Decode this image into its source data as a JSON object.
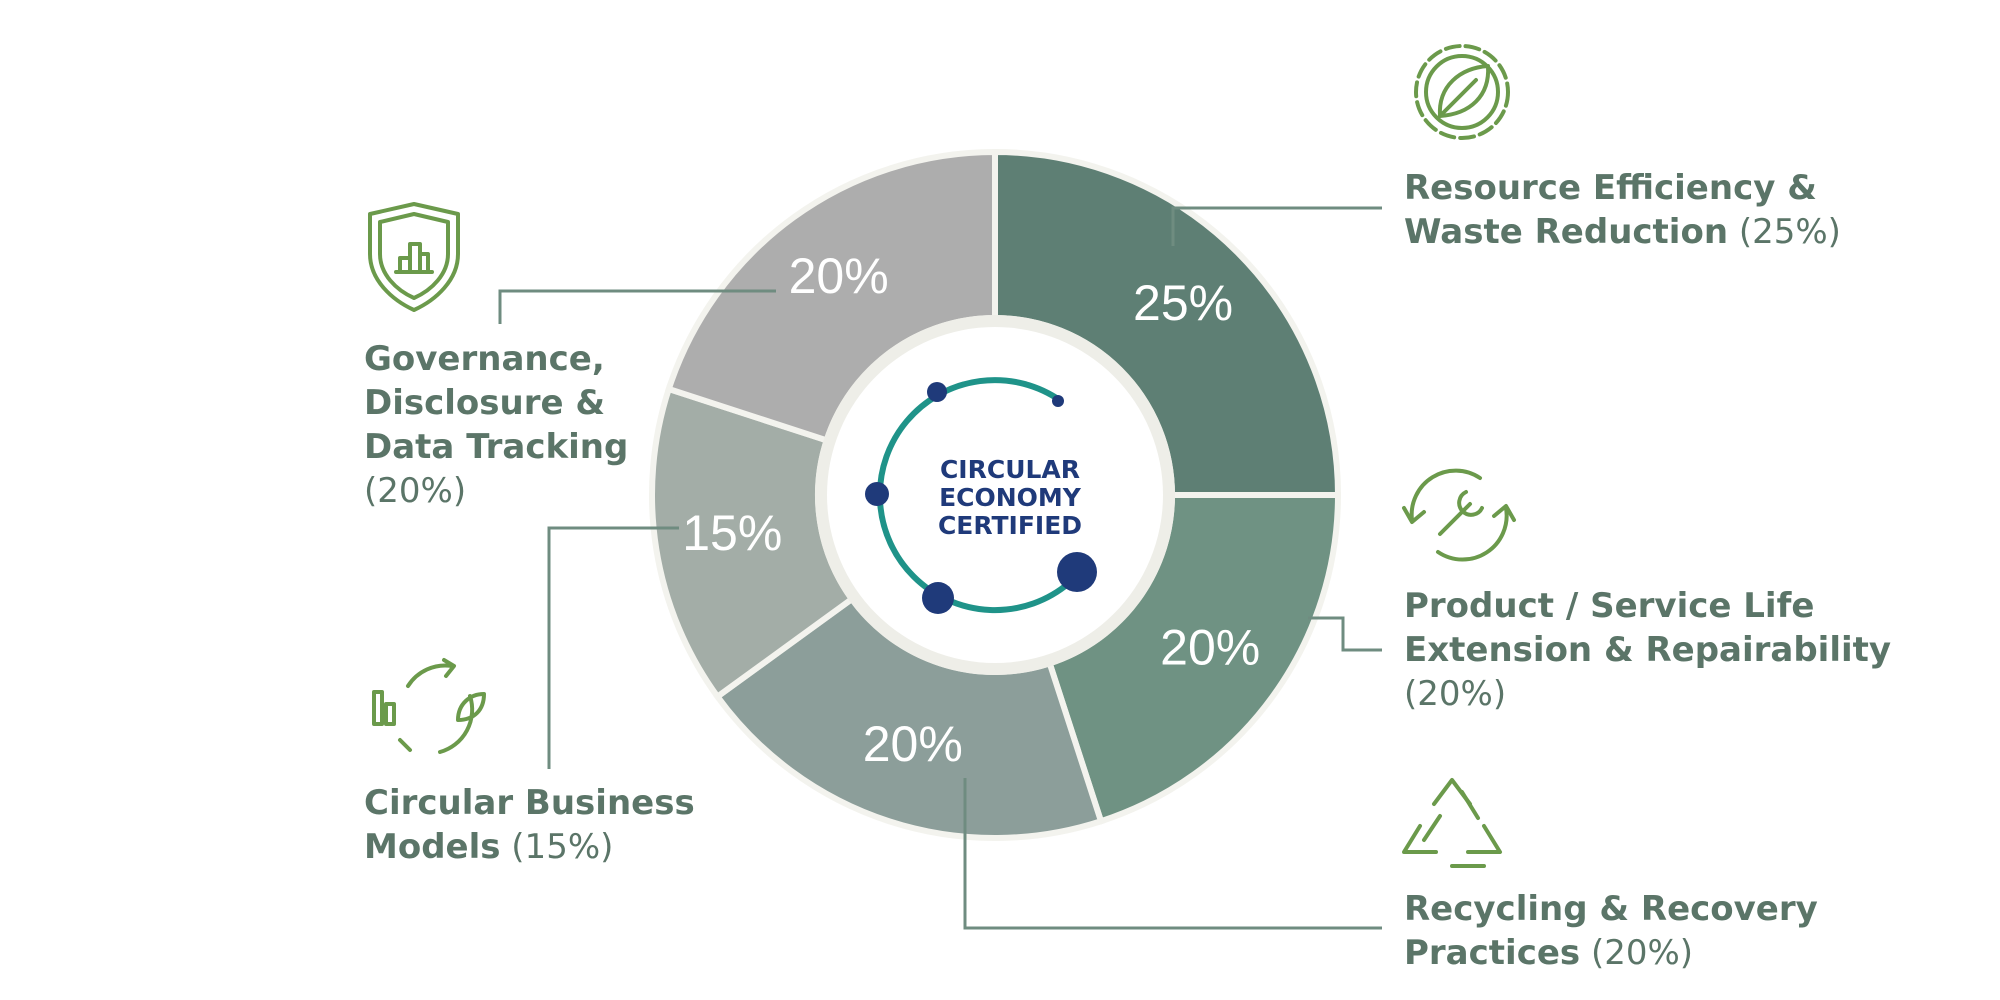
{
  "chart_data": {
    "type": "pie",
    "donut": true,
    "categories": [
      "Resource Efficiency & Waste Reduction",
      "Product / Service Life Extension & Repairability",
      "Recycling & Recovery Practices",
      "Circular Business Models",
      "Governance, Disclosure & Data Tracking"
    ],
    "values": [
      25,
      20,
      20,
      15,
      20
    ],
    "value_labels": [
      "25%",
      "20%",
      "20%",
      "15%",
      "20%"
    ],
    "legend_value_labels": [
      "(25%)",
      "(20%)",
      "(20%)",
      "(15%)",
      "(20%)"
    ],
    "colors": [
      "#5e7f74",
      "#6f9283",
      "#8c9e9a",
      "#a3ada7",
      "#adadad"
    ],
    "center_text": [
      "CIRCULAR",
      "ECONOMY",
      "CERTIFIED"
    ]
  }
}
